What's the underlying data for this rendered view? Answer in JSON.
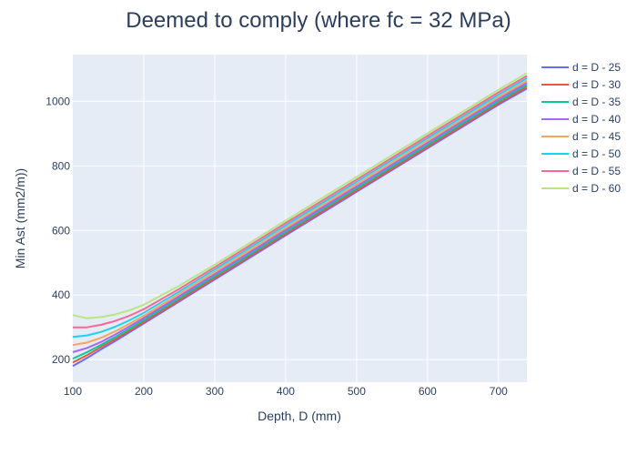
{
  "chart_data": {
    "type": "line",
    "title": "Deemed to comply (where fc = 32 MPa)",
    "xlabel": "Depth, D (mm)",
    "ylabel": "Min Ast (mm2/m))",
    "xlim": [
      100,
      740
    ],
    "ylim": [
      130,
      1145
    ],
    "xticks": [
      100,
      200,
      300,
      400,
      500,
      600,
      700
    ],
    "yticks": [
      200,
      400,
      600,
      800,
      1000
    ],
    "grid": true,
    "legend_position": "right",
    "x": [
      100,
      120,
      140,
      160,
      180,
      200,
      250,
      300,
      400,
      500,
      600,
      700,
      740
    ],
    "series": [
      {
        "name": "d = D - 25",
        "color": "#636efa",
        "values": [
          180,
          205,
          232,
          258,
          285,
          312,
          380,
          448,
          585,
          720,
          855,
          990,
          1040
        ]
      },
      {
        "name": "d = D - 30",
        "color": "#ef553b",
        "values": [
          191,
          214,
          239,
          264,
          290,
          317,
          385,
          453,
          590,
          725,
          860,
          995,
          1046
        ]
      },
      {
        "name": "d = D - 35",
        "color": "#00cc96",
        "values": [
          203,
          223,
          246,
          270,
          296,
          323,
          391,
          459,
          596,
          731,
          866,
          1001,
          1052
        ]
      },
      {
        "name": "d = D - 40",
        "color": "#ab63fa",
        "values": [
          223,
          236,
          255,
          278,
          303,
          329,
          397,
          465,
          602,
          737,
          872,
          1007,
          1058
        ]
      },
      {
        "name": "d = D - 45",
        "color": "#ffa15a",
        "values": [
          245,
          253,
          268,
          288,
          311,
          336,
          404,
          472,
          609,
          744,
          879,
          1014,
          1065
        ]
      },
      {
        "name": "d = D - 50",
        "color": "#19d3f3",
        "values": [
          270,
          275,
          286,
          302,
          322,
          345,
          411,
          479,
          616,
          751,
          886,
          1021,
          1072
        ]
      },
      {
        "name": "d = D - 55",
        "color": "#ff6692",
        "values": [
          300,
          300,
          308,
          320,
          336,
          356,
          419,
          486,
          623,
          758,
          893,
          1028,
          1079
        ]
      },
      {
        "name": "d = D - 60",
        "color": "#b6e880",
        "values": [
          338,
          328,
          332,
          340,
          353,
          370,
          429,
          494,
          631,
          766,
          901,
          1036,
          1088
        ]
      }
    ]
  }
}
